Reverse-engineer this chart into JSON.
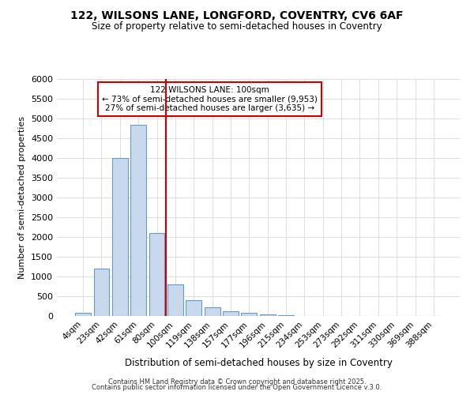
{
  "title1": "122, WILSONS LANE, LONGFORD, COVENTRY, CV6 6AF",
  "title2": "Size of property relative to semi-detached houses in Coventry",
  "xlabel": "Distribution of semi-detached houses by size in Coventry",
  "ylabel": "Number of semi-detached properties",
  "bin_labels": [
    "4sqm",
    "23sqm",
    "42sqm",
    "61sqm",
    "80sqm",
    "100sqm",
    "119sqm",
    "138sqm",
    "157sqm",
    "177sqm",
    "196sqm",
    "215sqm",
    "234sqm",
    "253sqm",
    "273sqm",
    "292sqm",
    "311sqm",
    "330sqm",
    "369sqm",
    "388sqm"
  ],
  "bar_values": [
    75,
    1200,
    4000,
    4850,
    2100,
    800,
    400,
    225,
    125,
    75,
    50,
    30,
    0,
    0,
    0,
    0,
    0,
    0,
    0,
    0
  ],
  "bar_color": "#c9d9ed",
  "bar_edge_color": "#6699cc",
  "vline_position": 4.5,
  "annotation_title": "122 WILSONS LANE: 100sqm",
  "annotation_line1": "← 73% of semi-detached houses are smaller (9,953)",
  "annotation_line2": "27% of semi-detached houses are larger (3,635) →",
  "vline_color": "#cc0000",
  "annotation_box_color": "#cc0000",
  "ylim_max": 6000,
  "ytick_step": 500,
  "bg_color": "#ffffff",
  "plot_bg_color": "#ffffff",
  "grid_color": "#dddddd",
  "footer1": "Contains HM Land Registry data © Crown copyright and database right 2025.",
  "footer2": "Contains public sector information licensed under the Open Government Licence v.3.0."
}
